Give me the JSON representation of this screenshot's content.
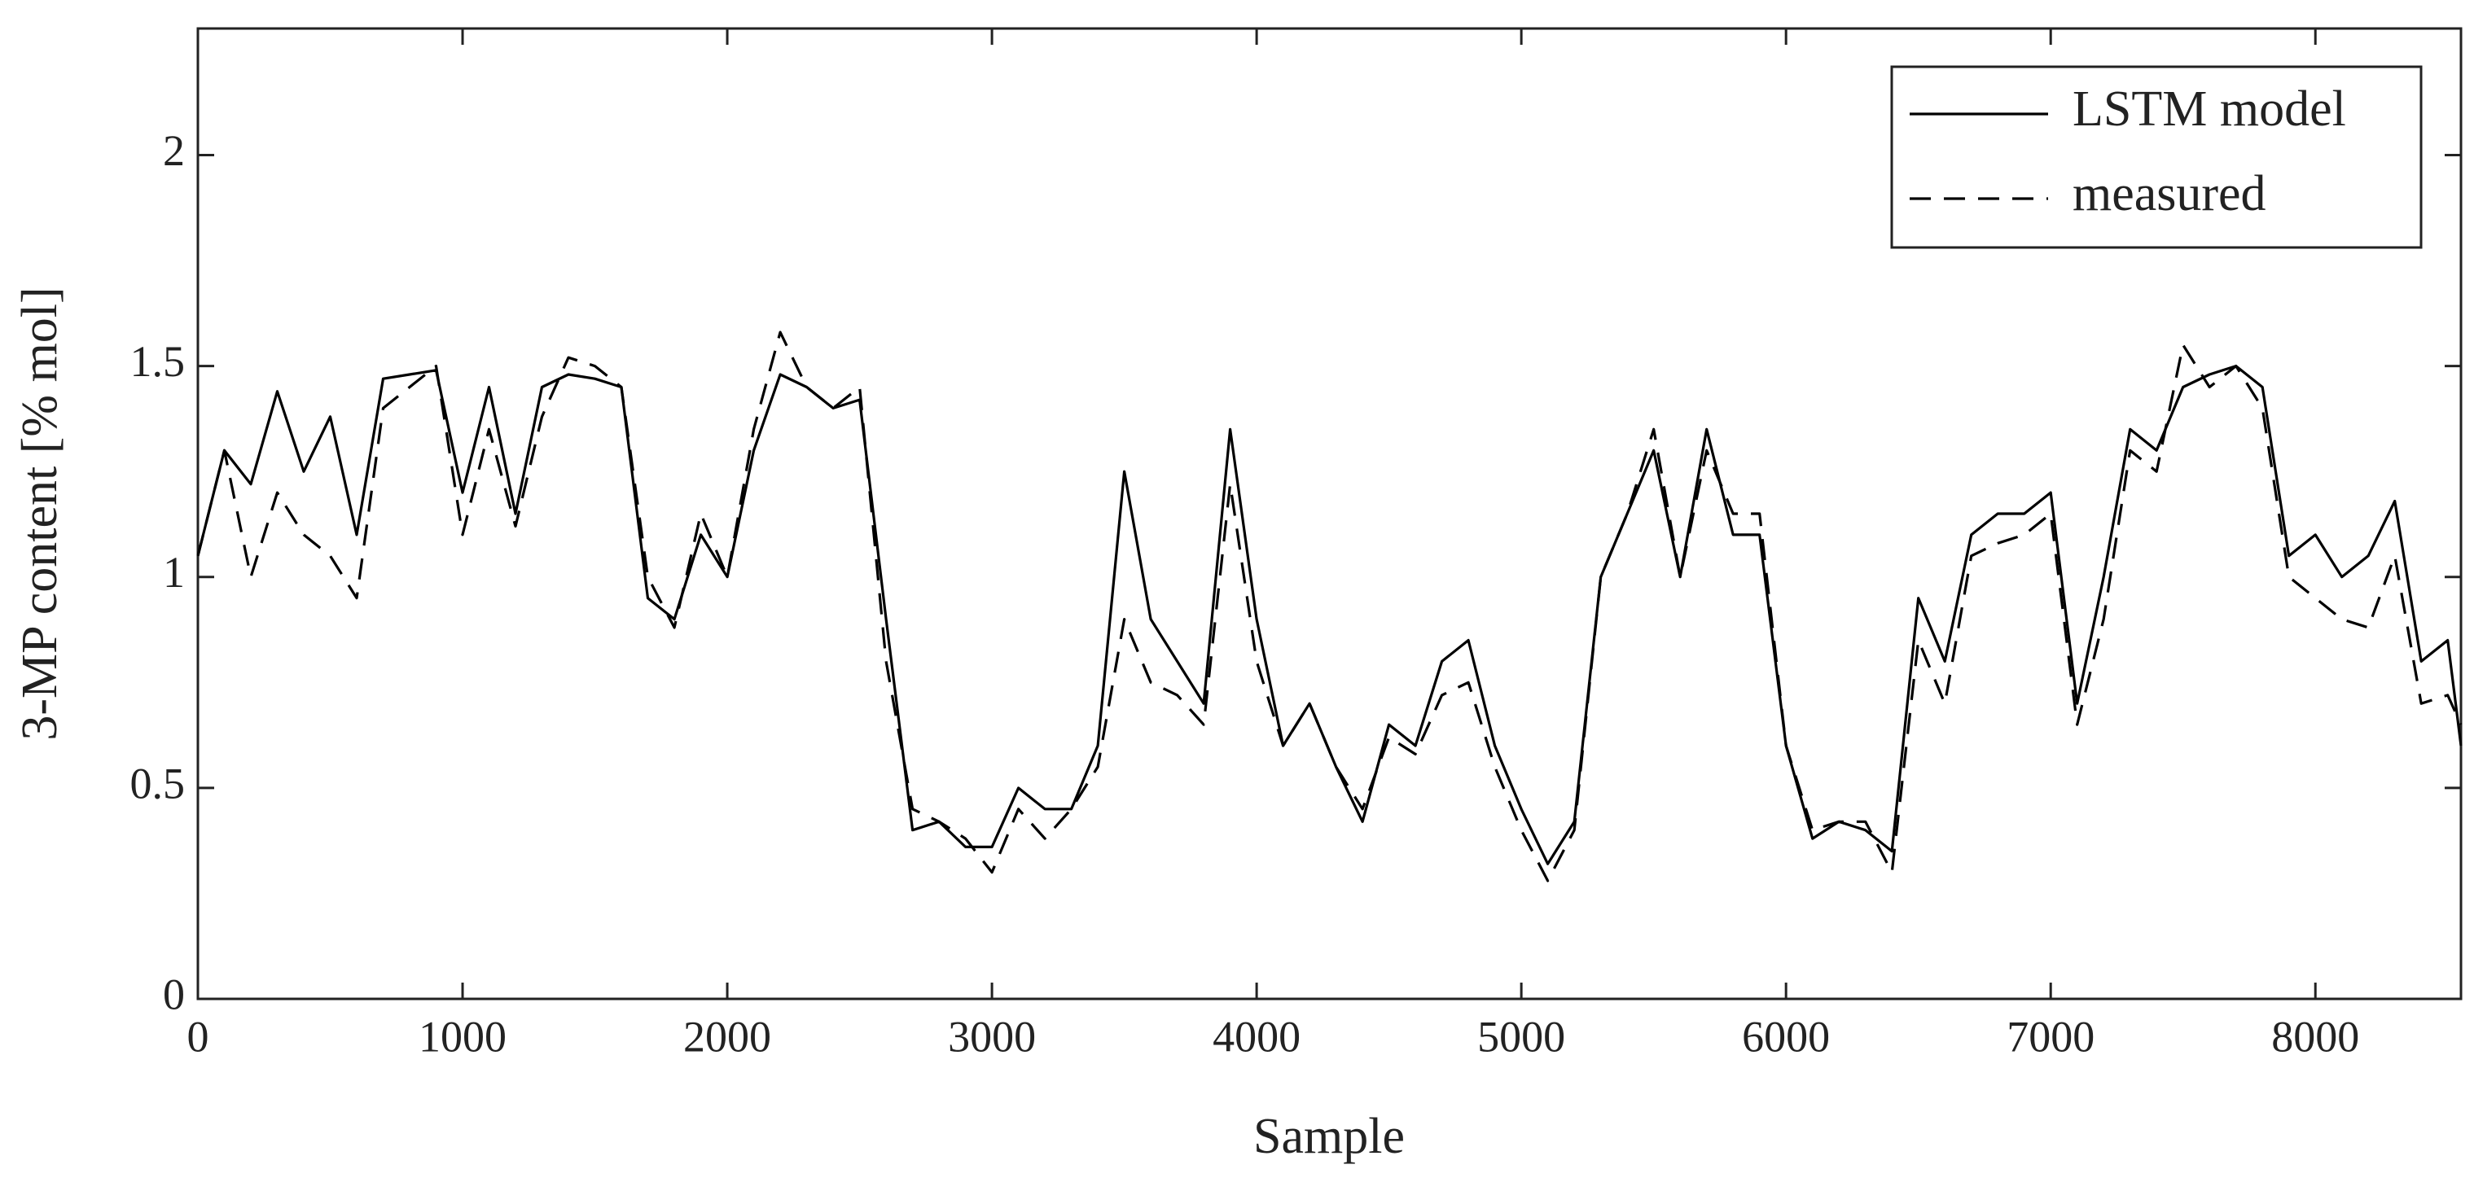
{
  "chart_data": {
    "type": "line",
    "xlabel": "Sample",
    "ylabel": "3-MP content [% mol]",
    "x": [
      0,
      100,
      200,
      300,
      400,
      500,
      600,
      700,
      800,
      900,
      1000,
      1100,
      1200,
      1300,
      1400,
      1500,
      1600,
      1700,
      1800,
      1900,
      2000,
      2100,
      2200,
      2300,
      2400,
      2500,
      2600,
      2700,
      2800,
      2900,
      3000,
      3100,
      3200,
      3300,
      3400,
      3500,
      3600,
      3700,
      3800,
      3900,
      4000,
      4100,
      4200,
      4300,
      4400,
      4500,
      4600,
      4700,
      4800,
      4900,
      5000,
      5100,
      5200,
      5300,
      5400,
      5500,
      5600,
      5700,
      5800,
      5900,
      6000,
      6100,
      6200,
      6300,
      6400,
      6500,
      6600,
      6700,
      6800,
      6900,
      7000,
      7100,
      7200,
      7300,
      7400,
      7500,
      7600,
      7700,
      7800,
      7900,
      8000,
      8100,
      8200,
      8300,
      8400,
      8500,
      8550
    ],
    "series": [
      {
        "name": "LSTM model",
        "color": "#000000",
        "dash": false,
        "values": [
          1.05,
          1.3,
          1.22,
          1.44,
          1.25,
          1.38,
          1.1,
          1.47,
          1.48,
          1.49,
          1.2,
          1.45,
          1.15,
          1.45,
          1.48,
          1.47,
          1.45,
          0.95,
          0.9,
          1.1,
          1.0,
          1.3,
          1.48,
          1.45,
          1.4,
          1.42,
          0.9,
          0.4,
          0.42,
          0.36,
          0.36,
          0.5,
          0.45,
          0.45,
          0.6,
          1.25,
          0.9,
          0.8,
          0.7,
          1.35,
          0.9,
          0.6,
          0.7,
          0.55,
          0.42,
          0.65,
          0.6,
          0.8,
          0.85,
          0.6,
          0.45,
          0.32,
          0.42,
          1.0,
          1.15,
          1.3,
          1.0,
          1.35,
          1.1,
          1.1,
          0.6,
          0.38,
          0.42,
          0.4,
          0.35,
          0.95,
          0.8,
          1.1,
          1.15,
          1.15,
          1.2,
          0.7,
          1.0,
          1.35,
          1.3,
          1.45,
          1.48,
          1.5,
          1.45,
          1.05,
          1.1,
          1.0,
          1.05,
          1.18,
          0.8,
          0.85,
          0.6
        ]
      },
      {
        "name": "measured",
        "color": "#000000",
        "dash": true,
        "values": [
          1.05,
          1.3,
          1.0,
          1.2,
          1.1,
          1.05,
          0.95,
          1.4,
          1.45,
          1.5,
          1.1,
          1.35,
          1.12,
          1.38,
          1.52,
          1.5,
          1.45,
          1.0,
          0.88,
          1.15,
          1.0,
          1.35,
          1.58,
          1.45,
          1.4,
          1.45,
          0.8,
          0.45,
          0.42,
          0.38,
          0.3,
          0.45,
          0.38,
          0.45,
          0.55,
          0.9,
          0.75,
          0.72,
          0.65,
          1.22,
          0.8,
          0.6,
          0.7,
          0.55,
          0.45,
          0.62,
          0.58,
          0.72,
          0.75,
          0.55,
          0.4,
          0.28,
          0.4,
          1.0,
          1.15,
          1.35,
          1.0,
          1.3,
          1.15,
          1.15,
          0.6,
          0.4,
          0.42,
          0.42,
          0.3,
          0.85,
          0.7,
          1.05,
          1.08,
          1.1,
          1.15,
          0.65,
          0.9,
          1.3,
          1.25,
          1.55,
          1.45,
          1.5,
          1.4,
          1.0,
          0.95,
          0.9,
          0.88,
          1.05,
          0.7,
          0.72,
          0.65
        ]
      }
    ],
    "xlim": [
      0,
      8550
    ],
    "xticks": [
      0,
      1000,
      2000,
      3000,
      4000,
      5000,
      6000,
      7000,
      8000
    ],
    "ylim": [
      0,
      2.3
    ],
    "yticks": [
      0,
      0.5,
      1,
      1.5,
      2
    ],
    "legend": "upper right",
    "grid": false
  }
}
